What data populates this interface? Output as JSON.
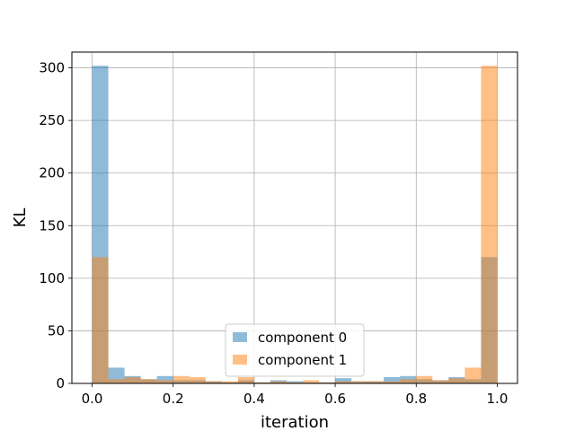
{
  "chart_data": {
    "type": "histogram",
    "title": "",
    "xlabel": "iteration",
    "ylabel": "KL",
    "xlim": [
      -0.05,
      1.05
    ],
    "ylim": [
      0,
      315
    ],
    "xticks": [
      "0.0",
      "0.2",
      "0.4",
      "0.6",
      "0.8",
      "1.0"
    ],
    "yticks": [
      "0",
      "50",
      "100",
      "150",
      "200",
      "250",
      "300"
    ],
    "grid": true,
    "legend_position": "lower center",
    "bin_edges": [
      0.0,
      0.04,
      0.08,
      0.12,
      0.16,
      0.2,
      0.24,
      0.28,
      0.32,
      0.36,
      0.4,
      0.44,
      0.48,
      0.52,
      0.56,
      0.6,
      0.64,
      0.68,
      0.72,
      0.76,
      0.8,
      0.84,
      0.88,
      0.92,
      0.96,
      1.0
    ],
    "series": [
      {
        "name": "component 0",
        "color": "#1f77b4",
        "alpha": 0.5,
        "values": [
          302,
          15,
          7,
          4,
          7,
          3,
          3,
          2,
          1,
          3,
          1,
          3,
          2,
          1,
          1,
          5,
          2,
          2,
          6,
          7,
          4,
          3,
          6,
          4,
          120
        ]
      },
      {
        "name": "component 1",
        "color": "#ff7f0e",
        "alpha": 0.5,
        "values": [
          120,
          4,
          6,
          4,
          3,
          7,
          6,
          2,
          2,
          6,
          1,
          2,
          1,
          3,
          1,
          2,
          2,
          2,
          2,
          4,
          7,
          3,
          5,
          15,
          302
        ]
      }
    ]
  }
}
